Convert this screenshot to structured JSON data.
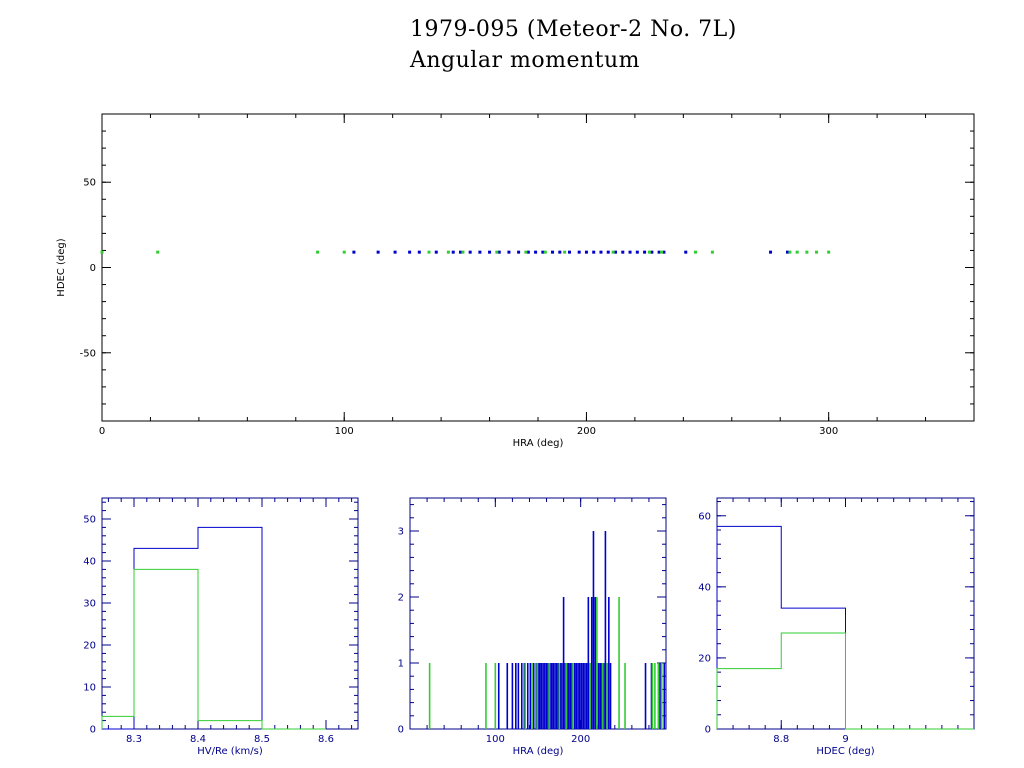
{
  "header": {
    "title": "1979-095 (Meteor-2 No. 7L)",
    "subtitle": "Angular momentum"
  },
  "colors": {
    "axis_main": "#000000",
    "axis_small": "#00008b",
    "series_a": "#0000cd",
    "series_b": "#32cd32"
  },
  "chart_data": [
    {
      "type": "scatter",
      "xlabel": "HRA (deg)",
      "ylabel": "HDEC (deg)",
      "xlim": [
        0,
        360
      ],
      "ylim": [
        -90,
        90
      ],
      "xticks": [
        0,
        100,
        200,
        300
      ],
      "yticks": [
        -50,
        0,
        50
      ],
      "grid": false,
      "series": [
        {
          "color": "#0000cd",
          "x": [
            104,
            114,
            121,
            127,
            131,
            138,
            145,
            148,
            152,
            156,
            160,
            164,
            168,
            172,
            176,
            179,
            182,
            186,
            189,
            193,
            197,
            200,
            203,
            206,
            209,
            212,
            215,
            218,
            221,
            224,
            227,
            230,
            232,
            241,
            276,
            283
          ],
          "y": [
            9,
            9,
            9,
            9,
            9,
            9,
            9,
            9,
            9,
            9,
            9,
            9,
            9,
            9,
            9,
            9,
            9,
            9,
            9,
            9,
            9,
            9,
            9,
            9,
            9,
            9,
            9,
            9,
            9,
            9,
            9,
            9,
            9,
            9,
            9,
            9
          ]
        },
        {
          "color": "#32cd32",
          "x": [
            0,
            23,
            89,
            100,
            135,
            143,
            149,
            163,
            175,
            183,
            191,
            211,
            226,
            231,
            245,
            252,
            284,
            287,
            291,
            295,
            300
          ],
          "y": [
            9,
            9,
            9,
            9,
            9,
            9,
            9,
            9,
            9,
            9,
            9,
            9,
            9,
            9,
            9,
            9,
            9,
            9,
            9,
            9,
            9
          ]
        }
      ]
    },
    {
      "type": "histogram",
      "xlabel": "HV/Re (km/s)",
      "xlim": [
        8.25,
        8.65
      ],
      "ylim": [
        0,
        55
      ],
      "xticks": [
        8.3,
        8.4,
        8.5,
        8.6
      ],
      "yticks": [
        0,
        10,
        20,
        30,
        40,
        50
      ],
      "bin_edges": [
        8.2,
        8.3,
        8.4,
        8.5,
        8.6
      ],
      "series": [
        {
          "color": "#0000cd",
          "counts": [
            0,
            43,
            48,
            0
          ]
        },
        {
          "color": "#32cd32",
          "counts": [
            3,
            38,
            2,
            0
          ]
        }
      ]
    },
    {
      "type": "histogram",
      "xlabel": "HRA (deg)",
      "xlim": [
        0,
        300
      ],
      "ylim": [
        0,
        3.5
      ],
      "xticks": [
        100,
        200
      ],
      "yticks": [
        0,
        1,
        2,
        3
      ],
      "series": [
        {
          "color": "#0000cd",
          "x": [
            104,
            114,
            120,
            124,
            127,
            131,
            134,
            138,
            141,
            145,
            148,
            150,
            152,
            154,
            156,
            158,
            160,
            162,
            164,
            166,
            168,
            170,
            172,
            174,
            176,
            178,
            180,
            182,
            184,
            186,
            188,
            190,
            193,
            195,
            197,
            199,
            201,
            203,
            205,
            207,
            209,
            211,
            213,
            215,
            217,
            219,
            221,
            223,
            225,
            227,
            229,
            231,
            233,
            235,
            276,
            283,
            293,
            298
          ],
          "counts": [
            1,
            1,
            1,
            1,
            1,
            1,
            1,
            1,
            1,
            1,
            1,
            1,
            1,
            1,
            1,
            1,
            1,
            1,
            1,
            1,
            1,
            1,
            1,
            1,
            1,
            1,
            2,
            1,
            1,
            1,
            1,
            1,
            1,
            1,
            1,
            1,
            1,
            1,
            1,
            1,
            2,
            1,
            2,
            3,
            2,
            1,
            1,
            1,
            1,
            1,
            3,
            1,
            2,
            1,
            1,
            1,
            1,
            1
          ]
        },
        {
          "color": "#32cd32",
          "x": [
            23,
            89,
            100,
            135,
            143,
            149,
            163,
            175,
            183,
            191,
            211,
            219,
            226,
            231,
            245,
            252,
            284,
            287,
            291,
            295
          ],
          "counts": [
            1,
            1,
            1,
            1,
            1,
            1,
            1,
            1,
            1,
            1,
            1,
            2,
            1,
            1,
            2,
            1,
            1,
            1,
            1,
            1
          ]
        }
      ]
    },
    {
      "type": "histogram",
      "xlabel": "HDEC (deg)",
      "xlim": [
        8.6,
        9.4
      ],
      "ylim": [
        0,
        65
      ],
      "xticks": [
        8.8,
        9
      ],
      "xticklabels": [
        "8.8",
        "9"
      ],
      "yticks": [
        0,
        20,
        40,
        60
      ],
      "bin_edges": [
        8.6,
        8.8,
        9.0,
        9.2,
        9.4
      ],
      "series": [
        {
          "color": "#0000cd",
          "counts": [
            57,
            34,
            0,
            0
          ]
        },
        {
          "color": "#32cd32",
          "counts": [
            17,
            27,
            0,
            0
          ]
        }
      ]
    }
  ]
}
